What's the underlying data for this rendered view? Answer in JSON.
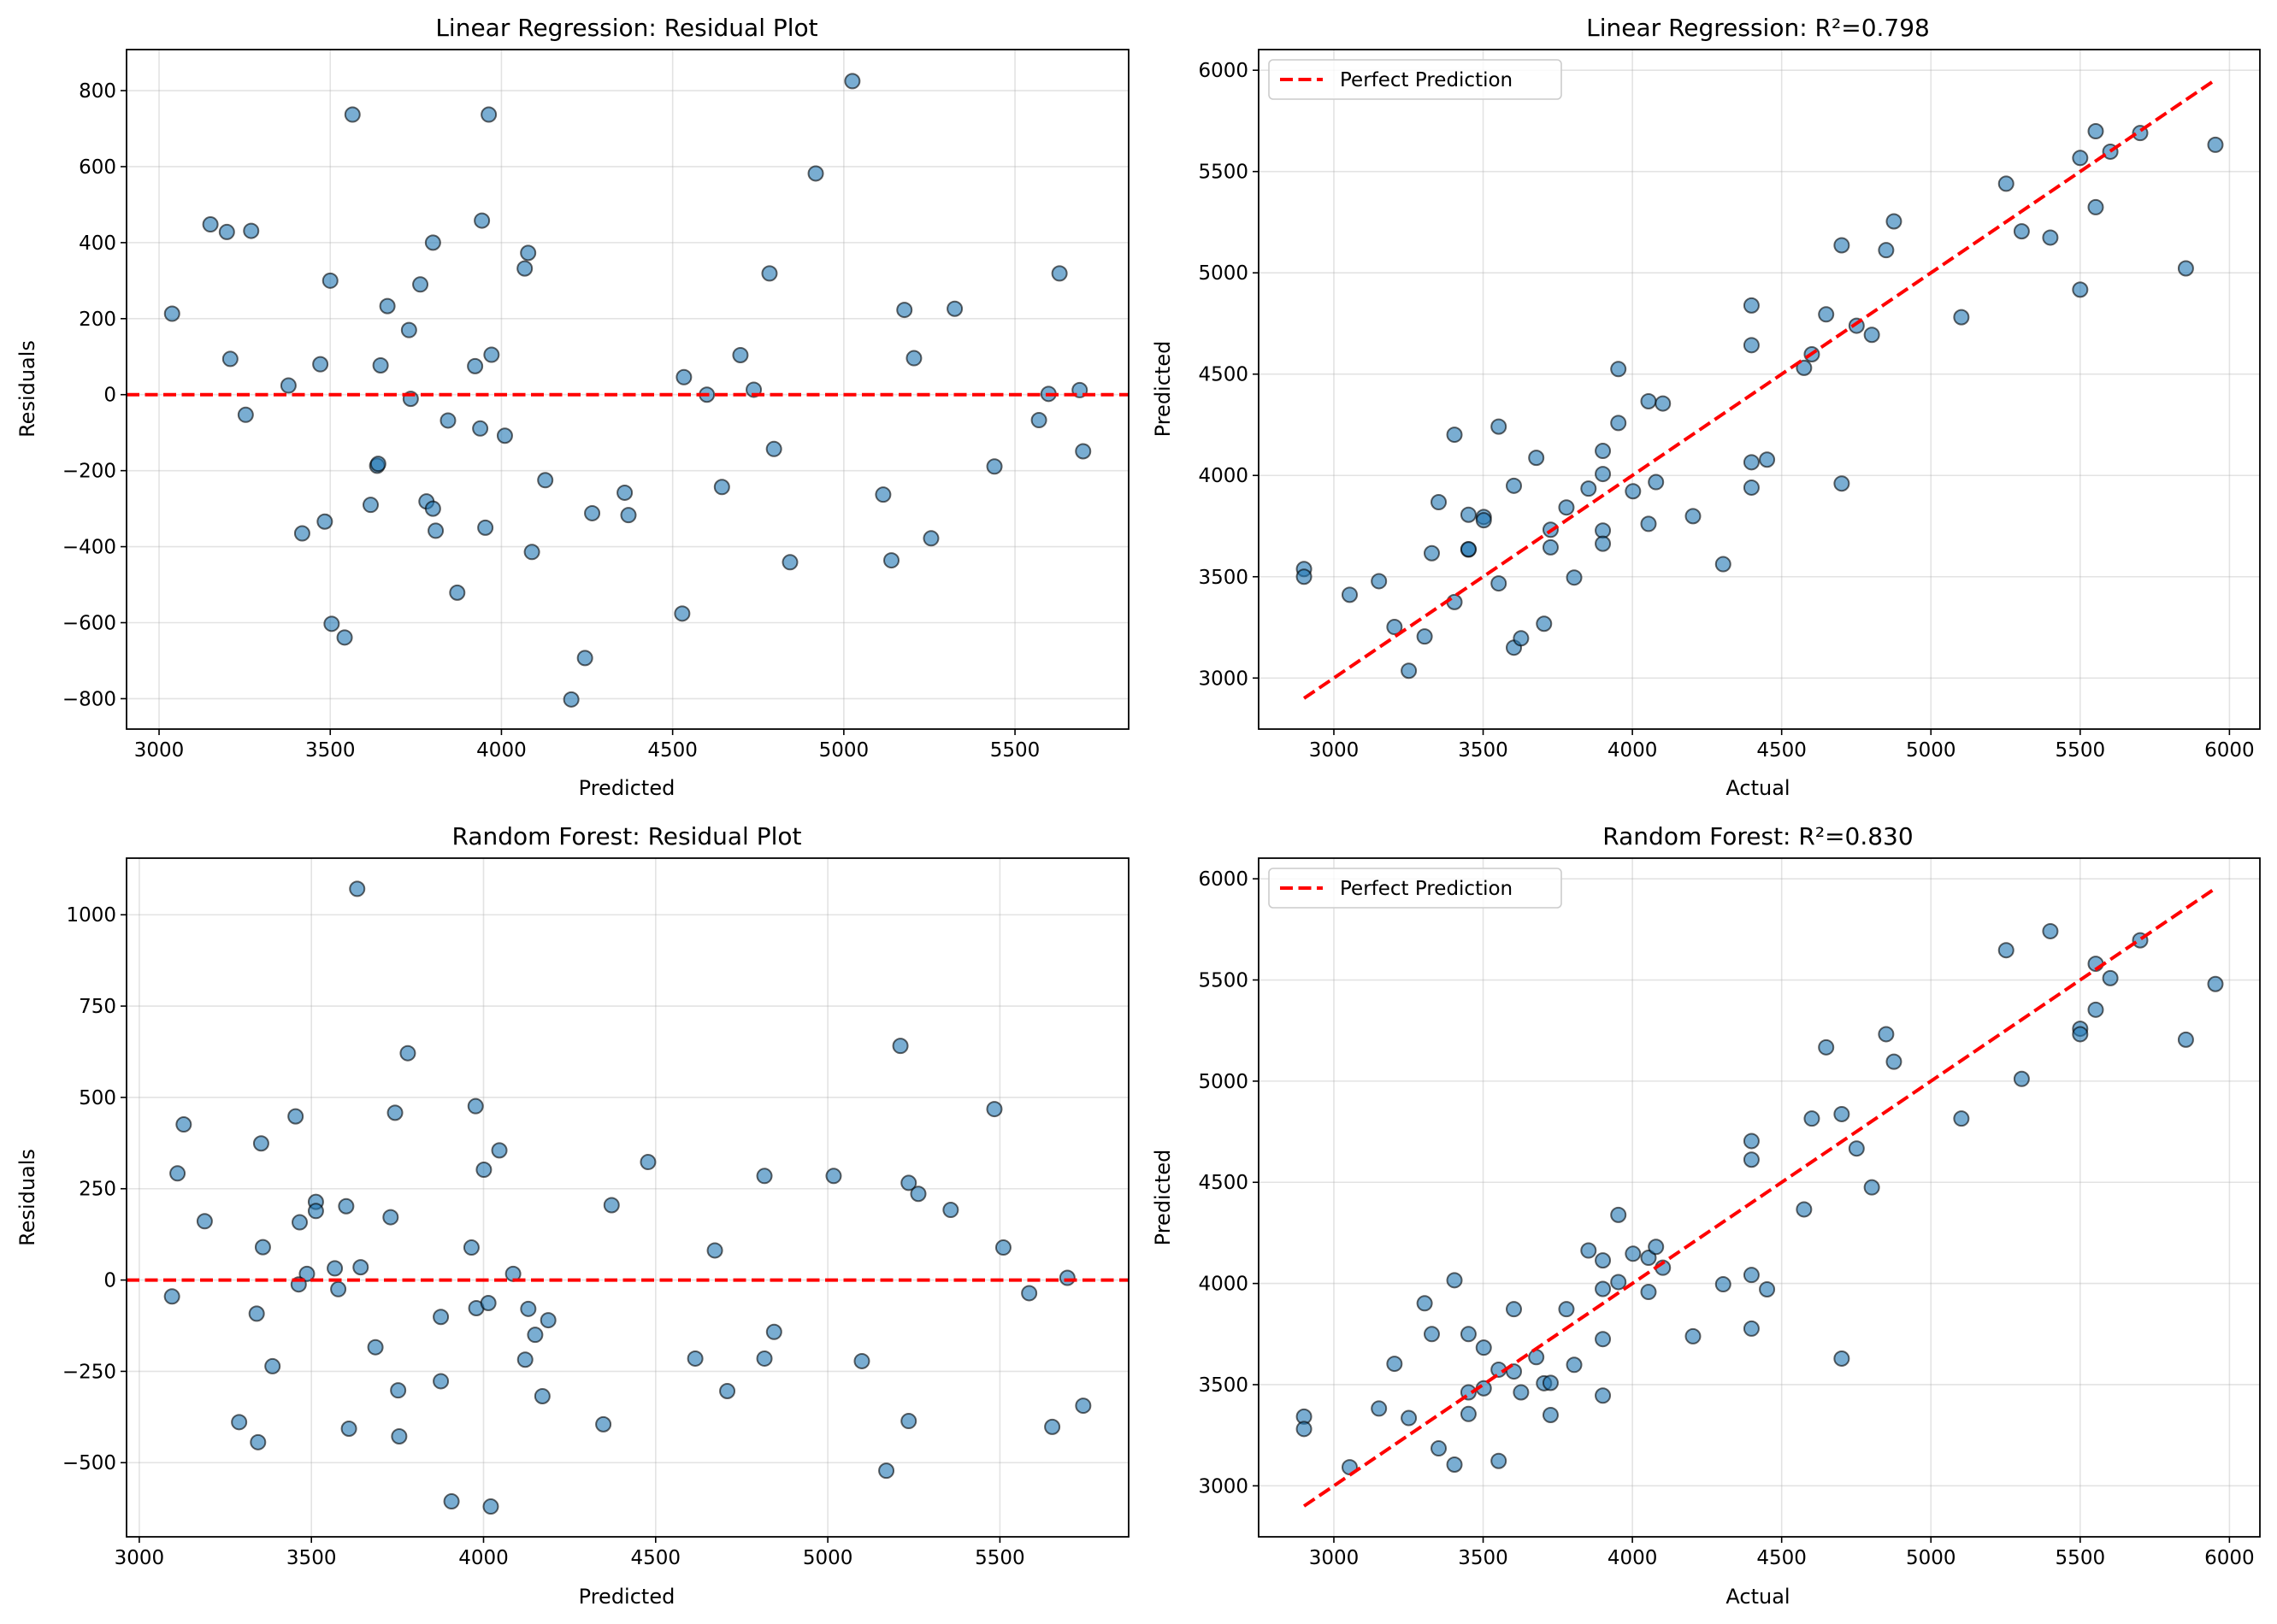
{
  "colors": {
    "marker_fill": "#1f77b4",
    "marker_edge": "#000000",
    "reference_line": "#ff0000",
    "grid": "#b0b0b0"
  },
  "chart_data": [
    {
      "type": "scatter",
      "title": "Linear Regression: Residual Plot",
      "xlabel": "Predicted",
      "ylabel": "Residuals",
      "xlim": [
        2905,
        5832
      ],
      "ylim": [
        -880,
        908
      ],
      "grid": true,
      "xticks": [
        3000,
        3500,
        4000,
        4500,
        5000,
        5500
      ],
      "xtick_labels": [
        "3000",
        "3500",
        "4000",
        "4500",
        "5000",
        "5500"
      ],
      "yticks": [
        -800,
        -600,
        -400,
        -200,
        0,
        200,
        400,
        600,
        800
      ],
      "ytick_labels": [
        "−800",
        "−600",
        "−400",
        "−200",
        "0",
        "200",
        "400",
        "600",
        "800"
      ],
      "reference_line": {
        "type": "horizontal",
        "y": 0,
        "style": "dashed"
      },
      "points": [
        [
          3038,
          213
        ],
        [
          3150,
          448
        ],
        [
          3198,
          428
        ],
        [
          3269,
          431
        ],
        [
          3208,
          94
        ],
        [
          3253,
          -53
        ],
        [
          3378,
          24
        ],
        [
          3471,
          80
        ],
        [
          3500,
          300
        ],
        [
          3565,
          737
        ],
        [
          3667,
          233
        ],
        [
          3647,
          77
        ],
        [
          3730,
          170
        ],
        [
          3763,
          290
        ],
        [
          3800,
          400
        ],
        [
          3735,
          -11
        ],
        [
          3844,
          -68
        ],
        [
          3938,
          -89
        ],
        [
          3923,
          75
        ],
        [
          3943,
          458
        ],
        [
          3963,
          737
        ],
        [
          3971,
          105
        ],
        [
          4010,
          -108
        ],
        [
          4068,
          332
        ],
        [
          4078,
          373
        ],
        [
          3637,
          -187
        ],
        [
          3640,
          -182
        ],
        [
          4128,
          -225
        ],
        [
          3618,
          -290
        ],
        [
          3484,
          -334
        ],
        [
          3418,
          -365
        ],
        [
          3781,
          -281
        ],
        [
          3800,
          -300
        ],
        [
          3808,
          -358
        ],
        [
          3953,
          -350
        ],
        [
          4360,
          -258
        ],
        [
          4265,
          -312
        ],
        [
          4371,
          -317
        ],
        [
          4089,
          -414
        ],
        [
          3871,
          -521
        ],
        [
          3504,
          -603
        ],
        [
          3542,
          -639
        ],
        [
          4244,
          -693
        ],
        [
          4204,
          -802
        ],
        [
          4528,
          -576
        ],
        [
          5025,
          825
        ],
        [
          4918,
          582
        ],
        [
          4783,
          319
        ],
        [
          4533,
          46
        ],
        [
          4600,
          0
        ],
        [
          4698,
          104
        ],
        [
          4737,
          13
        ],
        [
          4796,
          -143
        ],
        [
          4644,
          -243
        ],
        [
          4843,
          -441
        ],
        [
          5177,
          223
        ],
        [
          5324,
          226
        ],
        [
          5205,
          96
        ],
        [
          5115,
          -263
        ],
        [
          5139,
          -436
        ],
        [
          5255,
          -378
        ],
        [
          5440,
          -189
        ],
        [
          5630,
          319
        ],
        [
          5570,
          -67
        ],
        [
          5598,
          2
        ],
        [
          5689,
          12
        ],
        [
          5699,
          -149
        ]
      ]
    },
    {
      "type": "scatter",
      "title": "Linear Regression: R²=0.798",
      "xlabel": "Actual",
      "ylabel": "Predicted",
      "xlim": [
        2748,
        6102
      ],
      "ylim": [
        2748,
        6102
      ],
      "grid": true,
      "xticks": [
        3000,
        3500,
        4000,
        4500,
        5000,
        5500,
        6000
      ],
      "xtick_labels": [
        "3000",
        "3500",
        "4000",
        "4500",
        "5000",
        "5500",
        "6000"
      ],
      "yticks": [
        3000,
        3500,
        4000,
        4500,
        5000,
        5500,
        6000
      ],
      "ytick_labels": [
        "3000",
        "3500",
        "4000",
        "4500",
        "5000",
        "5500",
        "6000"
      ],
      "reference_line": {
        "type": "diagonal",
        "from": [
          2900,
          2900
        ],
        "to": [
          5950,
          5950
        ],
        "style": "dashed",
        "label": "Perfect Prediction"
      },
      "legend": {
        "entries": [
          "Perfect Prediction"
        ],
        "placement": "top-left"
      },
      "points": [
        [
          2900,
          3538
        ],
        [
          2900,
          3500
        ],
        [
          3053,
          3411
        ],
        [
          3151,
          3478
        ],
        [
          3203,
          3252
        ],
        [
          3251,
          3036
        ],
        [
          3304,
          3205
        ],
        [
          3328,
          3616
        ],
        [
          3351,
          3868
        ],
        [
          3404,
          4201
        ],
        [
          3404,
          3375
        ],
        [
          3451,
          3806
        ],
        [
          3451,
          3634
        ],
        [
          3451,
          3636
        ],
        [
          3502,
          3795
        ],
        [
          3502,
          3779
        ],
        [
          3552,
          4241
        ],
        [
          3552,
          3467
        ],
        [
          3603,
          3949
        ],
        [
          3603,
          3150
        ],
        [
          3627,
          3196
        ],
        [
          3678,
          4087
        ],
        [
          3704,
          3268
        ],
        [
          3726,
          3732
        ],
        [
          3726,
          3645
        ],
        [
          3779,
          3842
        ],
        [
          3805,
          3496
        ],
        [
          3853,
          3935
        ],
        [
          3901,
          4121
        ],
        [
          3901,
          4007
        ],
        [
          3901,
          3728
        ],
        [
          3901,
          3663
        ],
        [
          3953,
          4525
        ],
        [
          3953,
          4259
        ],
        [
          4002,
          3922
        ],
        [
          4054,
          4366
        ],
        [
          4102,
          4355
        ],
        [
          4079,
          3967
        ],
        [
          4054,
          3761
        ],
        [
          4203,
          3799
        ],
        [
          4304,
          3562
        ],
        [
          4399,
          4839
        ],
        [
          4399,
          4643
        ],
        [
          4399,
          4065
        ],
        [
          4399,
          3940
        ],
        [
          4451,
          4078
        ],
        [
          4575,
          4531
        ],
        [
          4601,
          4598
        ],
        [
          4649,
          4795
        ],
        [
          4701,
          5136
        ],
        [
          4701,
          3960
        ],
        [
          4751,
          4739
        ],
        [
          4802,
          4694
        ],
        [
          4850,
          5112
        ],
        [
          4876,
          5254
        ],
        [
          5102,
          4781
        ],
        [
          5252,
          5440
        ],
        [
          5304,
          5205
        ],
        [
          5400,
          5174
        ],
        [
          5500,
          5567
        ],
        [
          5500,
          4917
        ],
        [
          5552,
          5699
        ],
        [
          5552,
          5324
        ],
        [
          5601,
          5598
        ],
        [
          5701,
          5690
        ],
        [
          5854,
          5022
        ],
        [
          5953,
          5632
        ]
      ]
    },
    {
      "type": "scatter",
      "title": "Random Forest: Residual Plot",
      "xlabel": "Predicted",
      "ylabel": "Residuals",
      "xlim": [
        2963,
        5874
      ],
      "ylim": [
        -703,
        1155
      ],
      "grid": true,
      "xticks": [
        3000,
        3500,
        4000,
        4500,
        5000,
        5500
      ],
      "xtick_labels": [
        "3000",
        "3500",
        "4000",
        "4500",
        "5000",
        "5500"
      ],
      "yticks": [
        -500,
        -250,
        0,
        250,
        500,
        750,
        1000
      ],
      "ytick_labels": [
        "−500",
        "−250",
        "0",
        "250",
        "500",
        "750",
        "1000"
      ],
      "reference_line": {
        "type": "horizontal",
        "y": 0,
        "style": "dashed"
      },
      "points": [
        [
          3633,
          1071
        ],
        [
          3780,
          621
        ],
        [
          3129,
          426
        ],
        [
          3454,
          448
        ],
        [
          3743,
          458
        ],
        [
          3977,
          476
        ],
        [
          3354,
          374
        ],
        [
          3111,
          292
        ],
        [
          4046,
          355
        ],
        [
          4001,
          302
        ],
        [
          3190,
          161
        ],
        [
          3513,
          214
        ],
        [
          3513,
          189
        ],
        [
          3466,
          158
        ],
        [
          3601,
          202
        ],
        [
          3730,
          172
        ],
        [
          4372,
          205
        ],
        [
          3359,
          90
        ],
        [
          3965,
          89
        ],
        [
          3487,
          17
        ],
        [
          3568,
          32
        ],
        [
          3643,
          35
        ],
        [
          4086,
          17
        ],
        [
          3463,
          -12
        ],
        [
          3578,
          -25
        ],
        [
          3095,
          -45
        ],
        [
          3341,
          -92
        ],
        [
          3876,
          -101
        ],
        [
          3979,
          -77
        ],
        [
          4014,
          -63
        ],
        [
          4130,
          -79
        ],
        [
          4188,
          -110
        ],
        [
          4150,
          -150
        ],
        [
          3686,
          -184
        ],
        [
          4121,
          -218
        ],
        [
          3387,
          -236
        ],
        [
          3752,
          -302
        ],
        [
          3876,
          -277
        ],
        [
          4171,
          -318
        ],
        [
          3290,
          -389
        ],
        [
          3345,
          -444
        ],
        [
          3609,
          -407
        ],
        [
          3755,
          -428
        ],
        [
          4348,
          -395
        ],
        [
          3907,
          -606
        ],
        [
          4021,
          -620
        ],
        [
          4478,
          323
        ],
        [
          4672,
          81
        ],
        [
          4816,
          285
        ],
        [
          5017,
          285
        ],
        [
          5211,
          641
        ],
        [
          5235,
          266
        ],
        [
          5263,
          236
        ],
        [
          5357,
          192
        ],
        [
          5484,
          468
        ],
        [
          5510,
          89
        ],
        [
          5696,
          6
        ],
        [
          5585,
          -36
        ],
        [
          4615,
          -215
        ],
        [
          4816,
          -215
        ],
        [
          4844,
          -142
        ],
        [
          4708,
          -304
        ],
        [
          5099,
          -222
        ],
        [
          5235,
          -386
        ],
        [
          5170,
          -522
        ],
        [
          5652,
          -402
        ],
        [
          5742,
          -344
        ]
      ]
    },
    {
      "type": "scatter",
      "title": "Random Forest: R²=0.830",
      "xlabel": "Actual",
      "ylabel": "Predicted",
      "xlim": [
        2748,
        6102
      ],
      "ylim": [
        2748,
        6102
      ],
      "grid": true,
      "xticks": [
        3000,
        3500,
        4000,
        4500,
        5000,
        5500,
        6000
      ],
      "xtick_labels": [
        "3000",
        "3500",
        "4000",
        "4500",
        "5000",
        "5500",
        "6000"
      ],
      "yticks": [
        3000,
        3500,
        4000,
        4500,
        5000,
        5500,
        6000
      ],
      "ytick_labels": [
        "3000",
        "3500",
        "4000",
        "4500",
        "5000",
        "5500",
        "6000"
      ],
      "reference_line": {
        "type": "diagonal",
        "from": [
          2900,
          2900
        ],
        "to": [
          5950,
          5950
        ],
        "style": "dashed",
        "label": "Perfect Prediction"
      },
      "legend": {
        "entries": [
          "Perfect Prediction"
        ],
        "placement": "top-left"
      },
      "points": [
        [
          2900,
          3342
        ],
        [
          2900,
          3281
        ],
        [
          3053,
          3092
        ],
        [
          3151,
          3382
        ],
        [
          3203,
          3603
        ],
        [
          3251,
          3335
        ],
        [
          3304,
          3902
        ],
        [
          3328,
          3750
        ],
        [
          3351,
          3185
        ],
        [
          3404,
          4016
        ],
        [
          3404,
          3105
        ],
        [
          3451,
          3750
        ],
        [
          3451,
          3462
        ],
        [
          3451,
          3355
        ],
        [
          3502,
          3683
        ],
        [
          3502,
          3482
        ],
        [
          3552,
          3574
        ],
        [
          3552,
          3123
        ],
        [
          3603,
          3873
        ],
        [
          3603,
          3565
        ],
        [
          3627,
          3462
        ],
        [
          3678,
          3636
        ],
        [
          3704,
          3507
        ],
        [
          3726,
          3509
        ],
        [
          3726,
          3350
        ],
        [
          3779,
          3873
        ],
        [
          3805,
          3598
        ],
        [
          3853,
          4163
        ],
        [
          3901,
          4114
        ],
        [
          3901,
          3973
        ],
        [
          3901,
          3725
        ],
        [
          3901,
          3446
        ],
        [
          3953,
          4339
        ],
        [
          3953,
          4007
        ],
        [
          4002,
          4147
        ],
        [
          4054,
          4127
        ],
        [
          4054,
          3958
        ],
        [
          4079,
          4181
        ],
        [
          4102,
          4078
        ],
        [
          4203,
          3739
        ],
        [
          4304,
          3996
        ],
        [
          4399,
          4704
        ],
        [
          4399,
          4612
        ],
        [
          4399,
          4042
        ],
        [
          4399,
          3777
        ],
        [
          4451,
          3971
        ],
        [
          4575,
          4366
        ],
        [
          4601,
          4815
        ],
        [
          4649,
          5167
        ],
        [
          4701,
          4837
        ],
        [
          4701,
          3629
        ],
        [
          4751,
          4667
        ],
        [
          4802,
          4475
        ],
        [
          4850,
          5232
        ],
        [
          4876,
          5096
        ],
        [
          5102,
          4815
        ],
        [
          5252,
          5647
        ],
        [
          5304,
          5011
        ],
        [
          5400,
          5741
        ],
        [
          5500,
          5259
        ],
        [
          5500,
          5232
        ],
        [
          5552,
          5580
        ],
        [
          5552,
          5353
        ],
        [
          5601,
          5509
        ],
        [
          5701,
          5696
        ],
        [
          5854,
          5205
        ],
        [
          5953,
          5480
        ]
      ]
    }
  ]
}
